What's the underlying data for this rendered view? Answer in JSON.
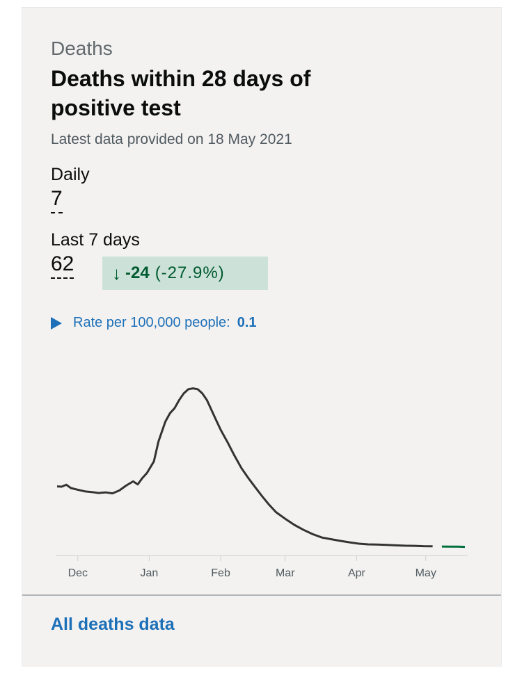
{
  "card": {
    "caption": "Deaths",
    "title": "Deaths within 28 days of positive test",
    "latest": "Latest data provided on 18 May 2021"
  },
  "daily": {
    "label": "Daily",
    "value": "7"
  },
  "last7": {
    "label": "Last 7 days",
    "value": "62",
    "change": {
      "arrow": "↓",
      "value": "-24",
      "percent": "(-27.9%)"
    }
  },
  "rate": {
    "label": "Rate per 100,000 people:",
    "value": "0.1"
  },
  "chart_data": {
    "type": "line",
    "title": "",
    "xlabel": "",
    "ylabel": "",
    "x_ticks": [
      "Dec",
      "Jan",
      "Feb",
      "Mar",
      "Apr",
      "May"
    ],
    "x_tick_dates": [
      "2020-12-01",
      "2021-01-01",
      "2021-02-01",
      "2021-03-01",
      "2021-04-01",
      "2021-05-01"
    ],
    "x_range": [
      "2020-11-22",
      "2021-05-18"
    ],
    "y_visible_axis": false,
    "grid": false,
    "series": [
      {
        "color": "#333333",
        "highlight_color": "#00703c",
        "highlight_from": "2021-05-05",
        "points": [
          [
            "2020-11-22",
            370
          ],
          [
            "2020-11-24",
            368
          ],
          [
            "2020-11-26",
            380
          ],
          [
            "2020-11-28",
            360
          ],
          [
            "2020-12-01",
            350
          ],
          [
            "2020-12-04",
            340
          ],
          [
            "2020-12-07",
            336
          ],
          [
            "2020-12-10",
            330
          ],
          [
            "2020-12-13",
            334
          ],
          [
            "2020-12-16",
            328
          ],
          [
            "2020-12-19",
            345
          ],
          [
            "2020-12-22",
            375
          ],
          [
            "2020-12-25",
            400
          ],
          [
            "2020-12-27",
            382
          ],
          [
            "2020-12-29",
            420
          ],
          [
            "2020-12-31",
            450
          ],
          [
            "2021-01-03",
            520
          ],
          [
            "2021-01-05",
            640
          ],
          [
            "2021-01-08",
            760
          ],
          [
            "2021-01-10",
            810
          ],
          [
            "2021-01-12",
            840
          ],
          [
            "2021-01-14",
            890
          ],
          [
            "2021-01-16",
            930
          ],
          [
            "2021-01-18",
            955
          ],
          [
            "2021-01-20",
            960
          ],
          [
            "2021-01-22",
            955
          ],
          [
            "2021-01-24",
            930
          ],
          [
            "2021-01-26",
            890
          ],
          [
            "2021-01-28",
            830
          ],
          [
            "2021-01-30",
            770
          ],
          [
            "2021-02-01",
            710
          ],
          [
            "2021-02-04",
            635
          ],
          [
            "2021-02-07",
            555
          ],
          [
            "2021-02-10",
            480
          ],
          [
            "2021-02-13",
            420
          ],
          [
            "2021-02-16",
            365
          ],
          [
            "2021-02-19",
            310
          ],
          [
            "2021-02-22",
            260
          ],
          [
            "2021-02-25",
            215
          ],
          [
            "2021-03-01",
            175
          ],
          [
            "2021-03-05",
            138
          ],
          [
            "2021-03-09",
            108
          ],
          [
            "2021-03-13",
            82
          ],
          [
            "2021-03-17",
            62
          ],
          [
            "2021-03-21",
            52
          ],
          [
            "2021-03-25",
            42
          ],
          [
            "2021-03-29",
            33
          ],
          [
            "2021-04-02",
            25
          ],
          [
            "2021-04-06",
            21
          ],
          [
            "2021-04-10",
            20
          ],
          [
            "2021-04-14",
            18
          ],
          [
            "2021-04-18",
            15
          ],
          [
            "2021-04-22",
            13
          ],
          [
            "2021-04-26",
            12
          ],
          [
            "2021-04-30",
            10
          ],
          [
            "2021-05-04",
            9
          ],
          [
            "2021-05-08",
            8
          ],
          [
            "2021-05-12",
            7
          ],
          [
            "2021-05-15",
            7
          ],
          [
            "2021-05-18",
            6
          ]
        ]
      }
    ]
  },
  "footer": {
    "link": "All deaths data"
  }
}
